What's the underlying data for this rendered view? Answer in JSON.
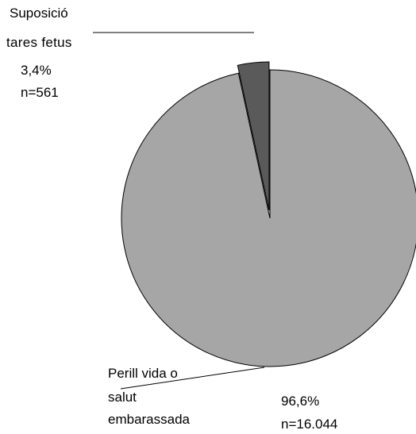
{
  "chart_data": {
    "type": "pie",
    "title": "",
    "slices": [
      {
        "label_lines": [
          "Suposició",
          "tares fetus"
        ],
        "percent_label": "3,4%",
        "count_label": "n=561",
        "percent": 3.4,
        "count": 561,
        "color": "#5a5a5a",
        "exploded": true
      },
      {
        "label_lines": [
          "Perill vida o",
          "salut",
          "embarassada"
        ],
        "percent_label": "96,6%",
        "count_label": "n=16.044",
        "percent": 96.6,
        "count": 16044,
        "color": "#a6a6a6",
        "exploded": false
      }
    ],
    "start_angle_deg": 0,
    "direction": "clockwise",
    "legend": "none",
    "stroke_color": "#000000"
  }
}
